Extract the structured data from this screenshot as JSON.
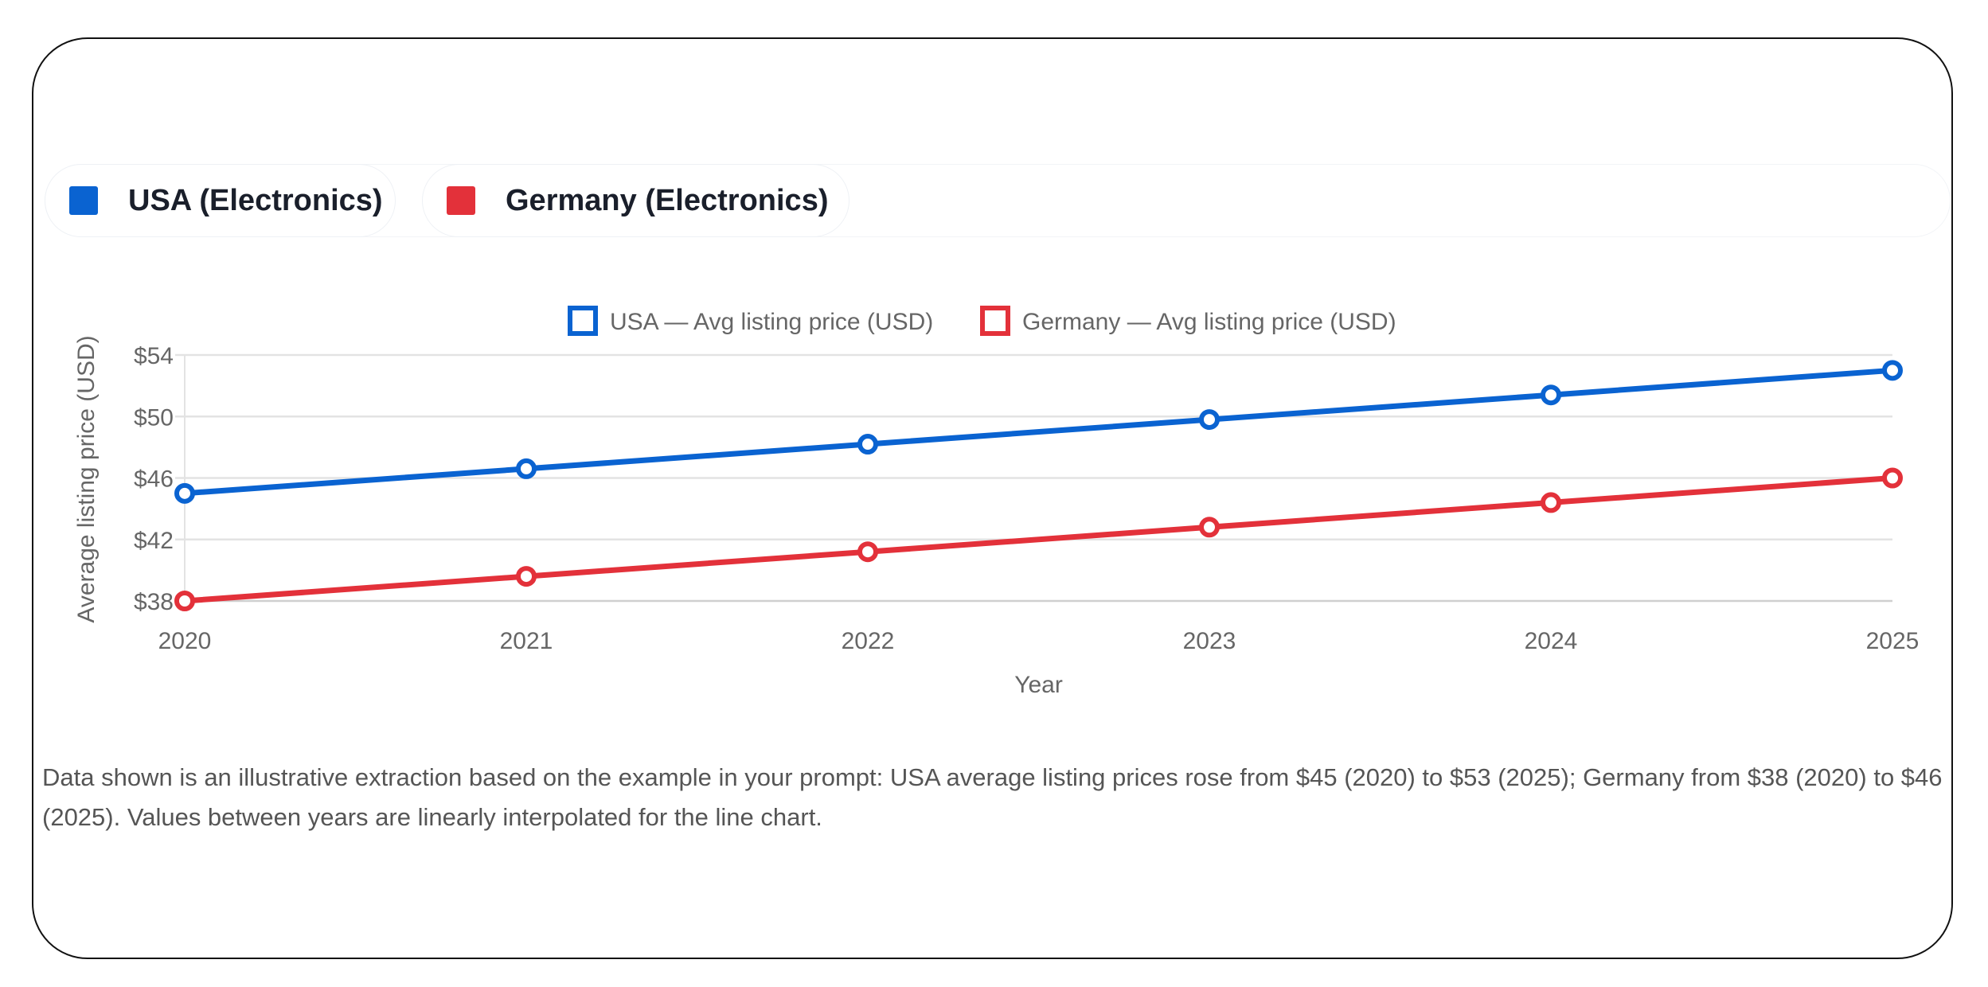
{
  "pills": [
    {
      "label": "USA (Electronics)",
      "color": "#0a63d1"
    },
    {
      "label": "Germany (Electronics)",
      "color": "#e3313a"
    }
  ],
  "note": "Data shown is an illustrative extraction based on the example in your prompt: USA average listing prices rose from $45 (2020) to $53 (2025); Germany from $38 (2020) to $46 (2025). Values between years are linearly interpolated for the line chart.",
  "chart_data": {
    "type": "line",
    "title": "",
    "xlabel": "Year",
    "ylabel": "Average listing price (USD)",
    "categories": [
      "2020",
      "2021",
      "2022",
      "2023",
      "2024",
      "2025"
    ],
    "ylim": [
      38,
      54
    ],
    "yticks": [
      38,
      42,
      46,
      50,
      54
    ],
    "ytick_labels": [
      "$38",
      "$42",
      "$46",
      "$50",
      "$54"
    ],
    "grid": true,
    "legend_position": "top",
    "series": [
      {
        "name": "USA — Avg listing price (USD)",
        "color": "#0a63d1",
        "values": [
          45,
          46.6,
          48.2,
          49.8,
          51.4,
          53
        ]
      },
      {
        "name": "Germany — Avg listing price (USD)",
        "color": "#e3313a",
        "values": [
          38,
          39.6,
          41.2,
          42.8,
          44.4,
          46
        ]
      }
    ]
  }
}
